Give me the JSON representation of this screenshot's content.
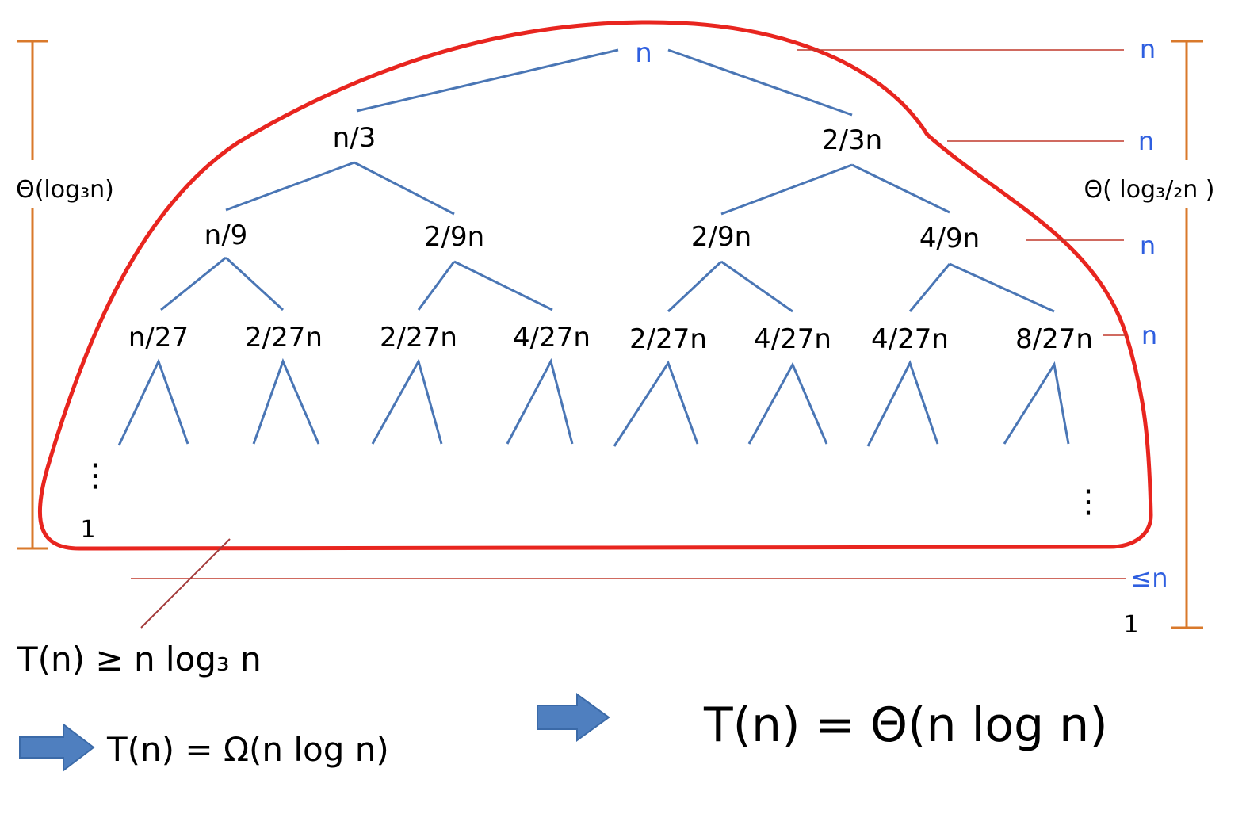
{
  "levels": {
    "root": [
      "n"
    ],
    "level1": [
      "n/3",
      "2/3n"
    ],
    "level2": [
      "n/9",
      "2/9n",
      "2/9n",
      "4/9n"
    ],
    "level3": [
      "n/27",
      "2/27n",
      "2/27n",
      "4/27n",
      "2/27n",
      "4/27n",
      "4/27n",
      "8/27n"
    ]
  },
  "leaf_left": "1",
  "ellipsis": "⋮",
  "level_costs": [
    "n",
    "n",
    "n",
    "n",
    "≤n"
  ],
  "right_bottom": "1",
  "left_height": "Θ(log₃n)",
  "right_height": "Θ( log₃/₂n )",
  "lower_bound": "T(n) ≥ n log₃ n",
  "omega_result": "T(n) = Ω(n log n)",
  "theta_result": "T(n) = Θ(n log n)",
  "colors": {
    "variable": "#2f5fe0",
    "tree_edge": "#4a76b5",
    "outline": "#e8251f",
    "guide": "#c0392b",
    "bracket": "#d9792b",
    "arrow": "#4f7fbf"
  }
}
